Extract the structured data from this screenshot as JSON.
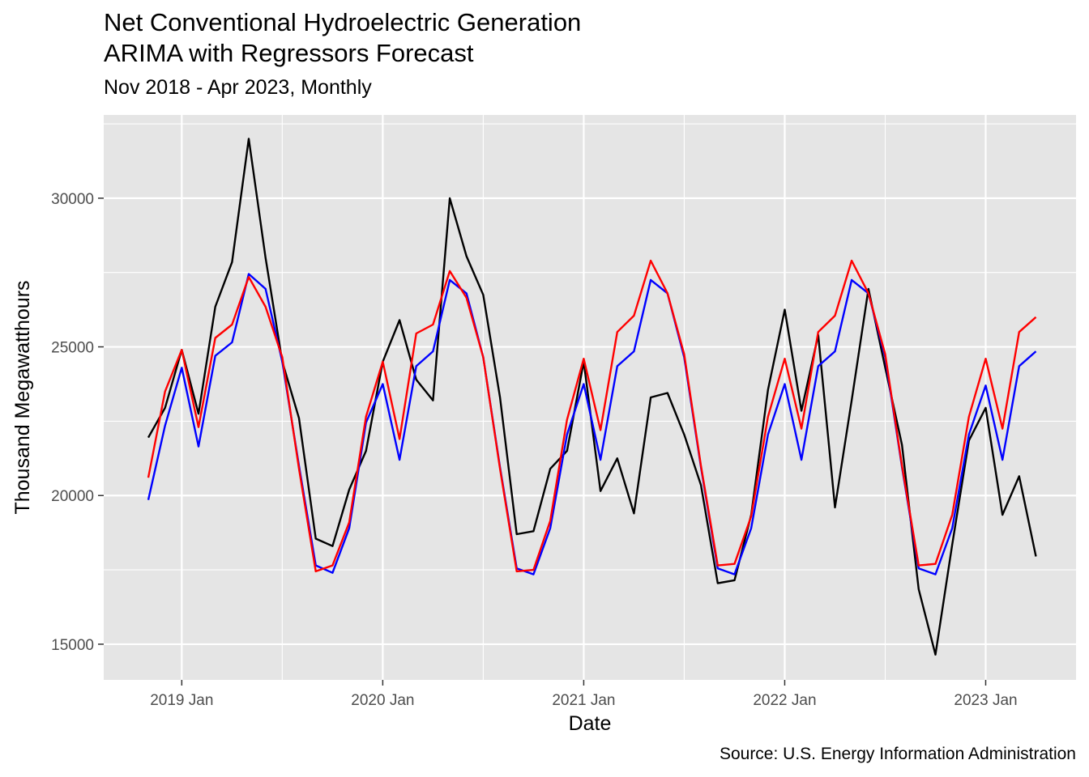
{
  "chart_data": {
    "type": "line",
    "title": [
      "Net Conventional Hydroelectric Generation",
      "ARIMA with Regressors Forecast"
    ],
    "subtitle": "Nov 2018 - Apr 2023, Monthly",
    "xlabel": "Date",
    "ylabel": "Thousand Megawatthours",
    "caption": "Source: U.S. Energy Information Administration",
    "x_start": "2018-11",
    "x_ticks": [
      "2019 Jan",
      "2020 Jan",
      "2021 Jan",
      "2022 Jan",
      "2023 Jan"
    ],
    "y_ticks": [
      15000,
      20000,
      25000,
      30000
    ],
    "ylim": [
      13800,
      32800
    ],
    "grid": true,
    "legend": "none",
    "x": [
      "2018-11",
      "2018-12",
      "2019-01",
      "2019-02",
      "2019-03",
      "2019-04",
      "2019-05",
      "2019-06",
      "2019-07",
      "2019-08",
      "2019-09",
      "2019-10",
      "2019-11",
      "2019-12",
      "2020-01",
      "2020-02",
      "2020-03",
      "2020-04",
      "2020-05",
      "2020-06",
      "2020-07",
      "2020-08",
      "2020-09",
      "2020-10",
      "2020-11",
      "2020-12",
      "2021-01",
      "2021-02",
      "2021-03",
      "2021-04",
      "2021-05",
      "2021-06",
      "2021-07",
      "2021-08",
      "2021-09",
      "2021-10",
      "2021-11",
      "2021-12",
      "2022-01",
      "2022-02",
      "2022-03",
      "2022-04",
      "2022-05",
      "2022-06",
      "2022-07",
      "2022-08",
      "2022-09",
      "2022-10",
      "2022-11",
      "2022-12",
      "2023-01",
      "2023-02",
      "2023-03",
      "2023-04"
    ],
    "series": [
      {
        "color": "#000000",
        "values": [
          21950,
          22950,
          24900,
          22750,
          26350,
          27850,
          32000,
          28000,
          24500,
          22600,
          18550,
          18300,
          20200,
          21500,
          24500,
          25900,
          23900,
          23200,
          30000,
          28050,
          26750,
          23300,
          18700,
          18800,
          20900,
          21500,
          24500,
          20150,
          21250,
          19400,
          23300,
          23450,
          22050,
          20350,
          17050,
          17150,
          19350,
          23550,
          26250,
          22850,
          25400,
          19600,
          23200,
          26950,
          24300,
          21700,
          16850,
          14650,
          18350,
          21850,
          22950,
          19350,
          20650,
          17950
        ]
      },
      {
        "color": "#0000ff",
        "values": [
          19850,
          22350,
          24300,
          21650,
          24700,
          25150,
          27450,
          26950,
          24500,
          21000,
          17650,
          17400,
          18900,
          22450,
          23750,
          21200,
          24350,
          24850,
          27250,
          26800,
          24650,
          20950,
          17550,
          17350,
          18900,
          22050,
          23750,
          21200,
          24350,
          24850,
          27250,
          26800,
          24650,
          20950,
          17550,
          17350,
          18900,
          22050,
          23750,
          21200,
          24350,
          24850,
          27250,
          26800,
          24650,
          20950,
          17550,
          17350,
          18900,
          22050,
          23700,
          21200,
          24350,
          24850
        ]
      },
      {
        "color": "#ff0000",
        "values": [
          20600,
          23500,
          24900,
          22300,
          25300,
          25750,
          27350,
          26350,
          24650,
          20900,
          17450,
          17650,
          19100,
          22650,
          24500,
          21900,
          25450,
          25750,
          27550,
          26650,
          24650,
          20900,
          17450,
          17500,
          19150,
          22550,
          24600,
          22200,
          25500,
          26050,
          27900,
          26800,
          24750,
          21000,
          17650,
          17700,
          19300,
          22650,
          24600,
          22250,
          25500,
          26050,
          27900,
          26800,
          24750,
          21000,
          17650,
          17700,
          19350,
          22650,
          24600,
          22250,
          25500,
          26000
        ]
      }
    ]
  }
}
